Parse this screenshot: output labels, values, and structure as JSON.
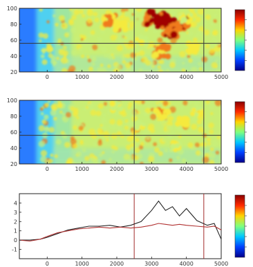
{
  "chart_data": [
    {
      "type": "heatmap",
      "title": "",
      "xlabel": "",
      "ylabel": "",
      "xlim": [
        -800,
        5000
      ],
      "ylim": [
        20,
        100
      ],
      "x_ticks": [
        "0",
        "1000",
        "2000",
        "3000",
        "4000",
        "5000"
      ],
      "y_ticks": [
        "100",
        "80",
        "60",
        "40",
        "20"
      ],
      "reference_lines": {
        "x": [
          2500,
          4500
        ],
        "y": [
          56
        ]
      },
      "hotspots": [
        {
          "x": 3400,
          "y": 82,
          "level": 1.0
        },
        {
          "x": 3100,
          "y": 88,
          "level": 0.95
        },
        {
          "x": 3800,
          "y": 80,
          "level": 0.9
        },
        {
          "x": 3500,
          "y": 72,
          "level": 0.85
        },
        {
          "x": 1800,
          "y": 86,
          "level": 0.75
        },
        {
          "x": 2100,
          "y": 78,
          "level": 0.65
        },
        {
          "x": 3300,
          "y": 46,
          "level": 0.8
        },
        {
          "x": 4200,
          "y": 50,
          "level": 0.65
        },
        {
          "x": 4000,
          "y": 88,
          "level": 0.6
        },
        {
          "x": 2700,
          "y": 60,
          "level": 0.55
        }
      ],
      "colorbar": {
        "colors": [
          "#8b0000",
          "#ff2a00",
          "#ffd400",
          "#7fff7f",
          "#00c8ff",
          "#0040ff",
          "#00008b"
        ]
      }
    },
    {
      "type": "heatmap",
      "title": "",
      "xlabel": "",
      "ylabel": "",
      "xlim": [
        -800,
        5000
      ],
      "ylim": [
        20,
        100
      ],
      "x_ticks": [
        "0",
        "1000",
        "2000",
        "3000",
        "4000",
        "5000"
      ],
      "y_ticks": [
        "100",
        "80",
        "60",
        "40",
        "20"
      ],
      "reference_lines": {
        "x": [
          2500,
          4500
        ],
        "y": [
          56
        ]
      },
      "hotspots": [
        {
          "x": 3300,
          "y": 82,
          "level": 0.7
        },
        {
          "x": 3900,
          "y": 74,
          "level": 0.65
        },
        {
          "x": 2700,
          "y": 68,
          "level": 0.55
        },
        {
          "x": 2000,
          "y": 92,
          "level": 0.55
        },
        {
          "x": 4300,
          "y": 86,
          "level": 0.55
        },
        {
          "x": 3700,
          "y": 42,
          "level": 0.55
        }
      ],
      "colorbar": {
        "colors": [
          "#8b0000",
          "#ff2a00",
          "#ffd400",
          "#7fff7f",
          "#00c8ff",
          "#0040ff",
          "#00008b"
        ]
      }
    },
    {
      "type": "line",
      "title": "",
      "xlabel": "",
      "ylabel": "",
      "xlim": [
        -800,
        5000
      ],
      "ylim": [
        -2,
        5
      ],
      "x_ticks": [
        "0",
        "1000",
        "2000",
        "3000",
        "4000",
        "5000"
      ],
      "y_ticks": [
        "4",
        "3",
        "2",
        "1",
        "0",
        "-1"
      ],
      "reference_lines": {
        "x": [
          2500,
          4500
        ]
      },
      "series": [
        {
          "color": "#222222",
          "x": [
            -800,
            -500,
            -200,
            0,
            300,
            600,
            900,
            1200,
            1500,
            1800,
            2100,
            2400,
            2700,
            3000,
            3200,
            3400,
            3600,
            3800,
            4000,
            4300,
            4600,
            4800,
            5000
          ],
          "y": [
            0.0,
            0.0,
            0.1,
            0.3,
            0.7,
            1.1,
            1.3,
            1.5,
            1.5,
            1.6,
            1.4,
            1.6,
            2.0,
            3.2,
            4.2,
            3.2,
            3.6,
            2.6,
            3.4,
            2.1,
            1.6,
            1.8,
            0.1
          ]
        },
        {
          "color": "#b03030",
          "x": [
            -800,
            -500,
            -200,
            0,
            300,
            600,
            900,
            1200,
            1500,
            1800,
            2100,
            2400,
            2700,
            3000,
            3200,
            3400,
            3600,
            3800,
            4000,
            4300,
            4600,
            4800,
            5000
          ],
          "y": [
            0.0,
            -0.1,
            0.1,
            0.4,
            0.8,
            1.0,
            1.2,
            1.3,
            1.4,
            1.3,
            1.4,
            1.3,
            1.4,
            1.6,
            1.8,
            1.7,
            1.6,
            1.7,
            1.6,
            1.5,
            1.4,
            1.5,
            1.1
          ]
        }
      ],
      "colorbar": {
        "colors": [
          "#8b0000",
          "#ff2a00",
          "#ffd400",
          "#7fff7f",
          "#00c8ff",
          "#0040ff",
          "#00008b"
        ]
      }
    }
  ]
}
